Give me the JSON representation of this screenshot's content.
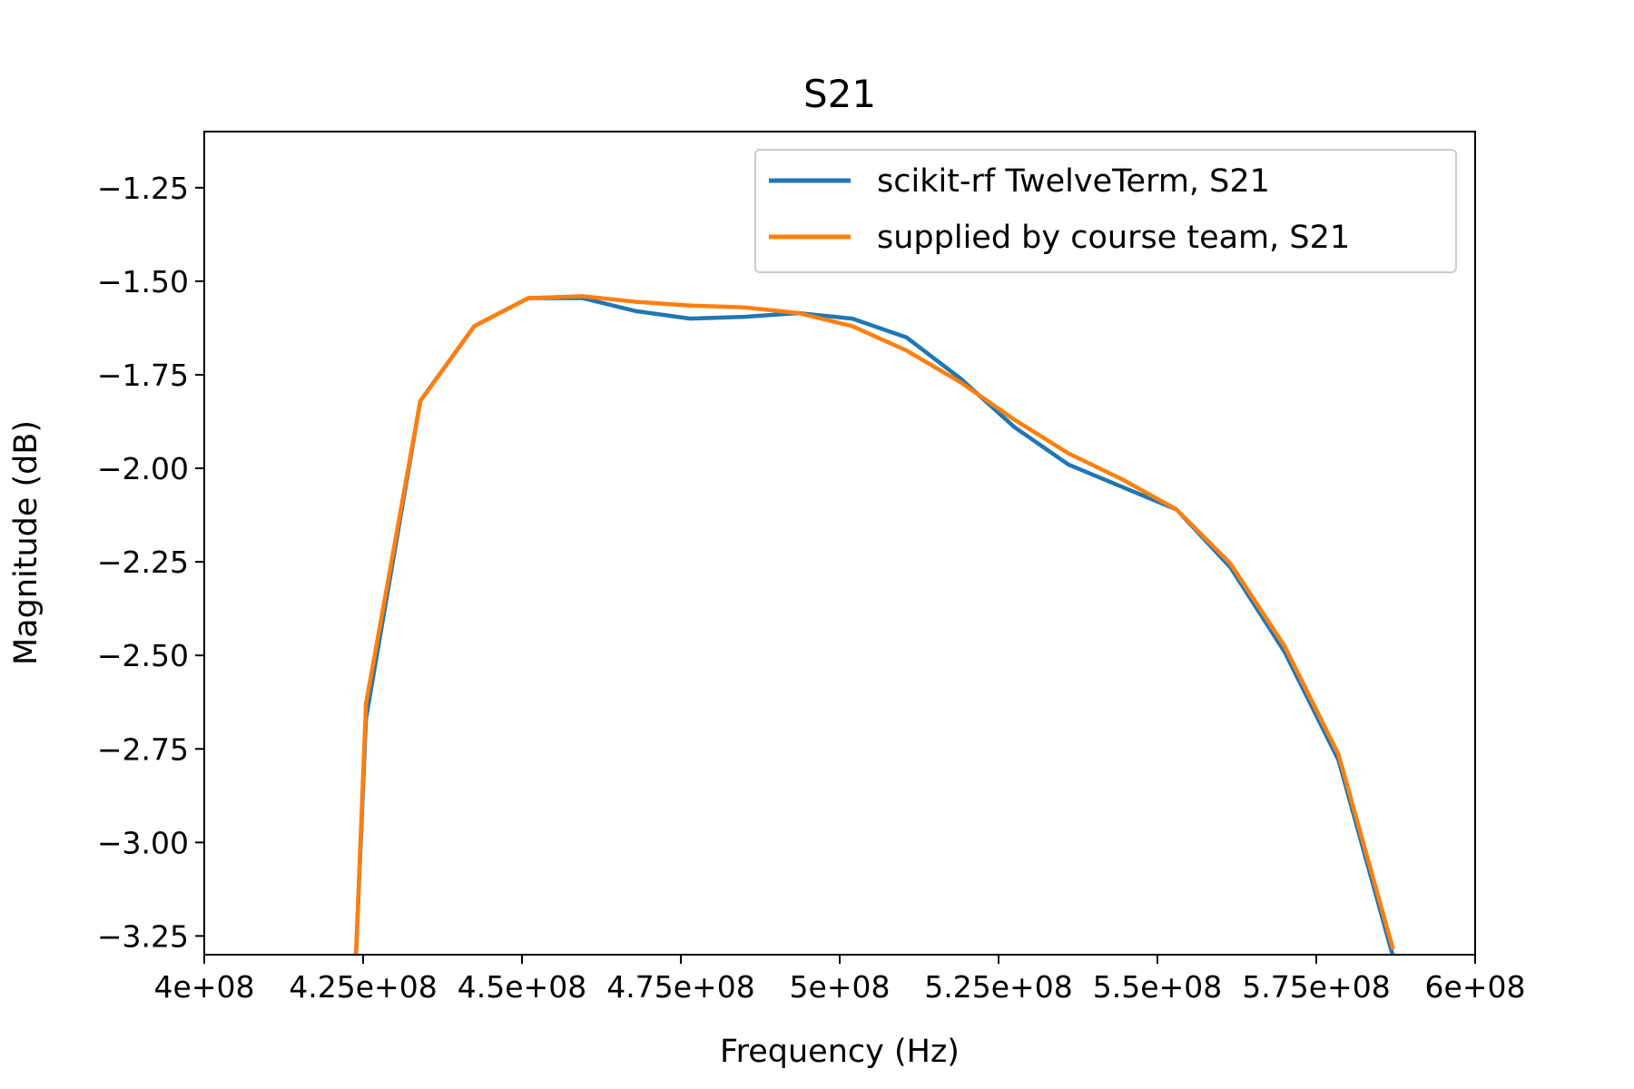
{
  "chart_data": {
    "type": "line",
    "title": "S21",
    "xlabel": "Frequency (Hz)",
    "ylabel": "Magnitude (dB)",
    "xlim": [
      400000000,
      600000000
    ],
    "ylim": [
      -3.3,
      -1.1
    ],
    "x_ticks": [
      400000000,
      425000000,
      450000000,
      475000000,
      500000000,
      525000000,
      550000000,
      575000000,
      600000000
    ],
    "x_tick_labels": [
      "4e+08",
      "4.25e+08",
      "4.5e+08",
      "4.75e+08",
      "5e+08",
      "5.25e+08",
      "5.5e+08",
      "5.75e+08",
      "6e+08"
    ],
    "y_ticks": [
      -1.25,
      -1.5,
      -1.75,
      -2.0,
      -2.25,
      -2.5,
      -2.75,
      -3.0,
      -3.25
    ],
    "y_tick_labels": [
      "−1.25",
      "−1.50",
      "−1.75",
      "−2.00",
      "−2.25",
      "−2.50",
      "−2.75",
      "−3.00",
      "−3.25"
    ],
    "grid": false,
    "legend_position": "top-right",
    "series": [
      {
        "name": "scikit-rf TwelveTerm, S21",
        "color": "#1f77b4",
        "x": [
          423750000,
          425450000,
          434000000,
          442500000,
          451000000,
          459500000,
          468000000,
          476500000,
          485000000,
          493500000,
          502000000,
          510500000,
          519000000,
          527500000,
          536000000,
          544500000,
          553000000,
          561500000,
          570000000,
          578500000,
          587000000
        ],
        "y": [
          -3.35,
          -2.67,
          -1.82,
          -1.62,
          -1.545,
          -1.545,
          -1.58,
          -1.6,
          -1.595,
          -1.585,
          -1.6,
          -1.65,
          -1.76,
          -1.89,
          -1.99,
          -2.05,
          -2.11,
          -2.265,
          -2.49,
          -2.78,
          -3.3
        ]
      },
      {
        "name": "supplied by course team, S21",
        "color": "#ff7f0e",
        "x": [
          423750000,
          425450000,
          434000000,
          442500000,
          451000000,
          459500000,
          468000000,
          476500000,
          485000000,
          493500000,
          502000000,
          510500000,
          519000000,
          527500000,
          536000000,
          544500000,
          553000000,
          561500000,
          570000000,
          578500000,
          587000000
        ],
        "y": [
          -3.35,
          -2.63,
          -1.82,
          -1.62,
          -1.545,
          -1.54,
          -1.555,
          -1.565,
          -1.57,
          -1.585,
          -1.62,
          -1.685,
          -1.77,
          -1.87,
          -1.96,
          -2.03,
          -2.11,
          -2.255,
          -2.475,
          -2.765,
          -3.28
        ]
      }
    ]
  }
}
